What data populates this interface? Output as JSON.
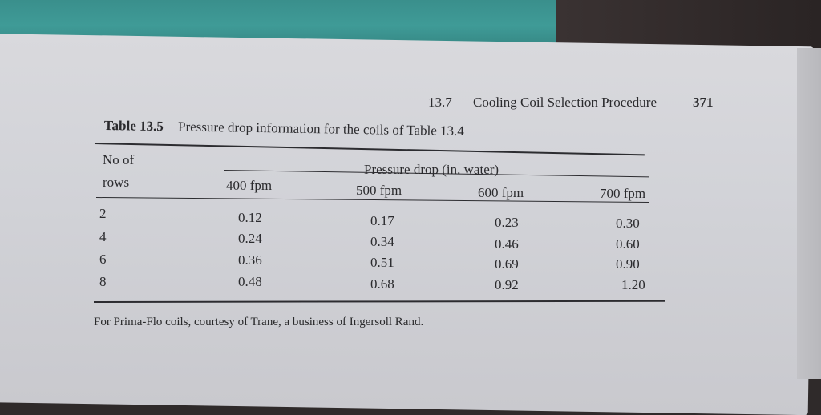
{
  "running_head": {
    "section": "13.7",
    "title": "Cooling Coil Selection Procedure",
    "page_number": "371"
  },
  "caption": {
    "table_number": "Table 13.5",
    "text": "Pressure drop information for the coils of Table 13.4"
  },
  "table": {
    "row_header_line1": "No of",
    "row_header_line2": "rows",
    "group_header": "Pressure drop (in. water)",
    "columns": [
      "400 fpm",
      "500 fpm",
      "600 fpm",
      "700 fpm"
    ],
    "rows": [
      {
        "rows": "2",
        "values": [
          "0.12",
          "0.17",
          "0.23",
          "0.30"
        ]
      },
      {
        "rows": "4",
        "values": [
          "0.24",
          "0.34",
          "0.46",
          "0.60"
        ]
      },
      {
        "rows": "6",
        "values": [
          "0.36",
          "0.51",
          "0.69",
          "0.90"
        ]
      },
      {
        "rows": "8",
        "values": [
          "0.48",
          "0.68",
          "0.92",
          "1.20"
        ]
      }
    ]
  },
  "footnote": "For Prima-Flo coils, courtesy of Trane, a business of Ingersoll Rand."
}
